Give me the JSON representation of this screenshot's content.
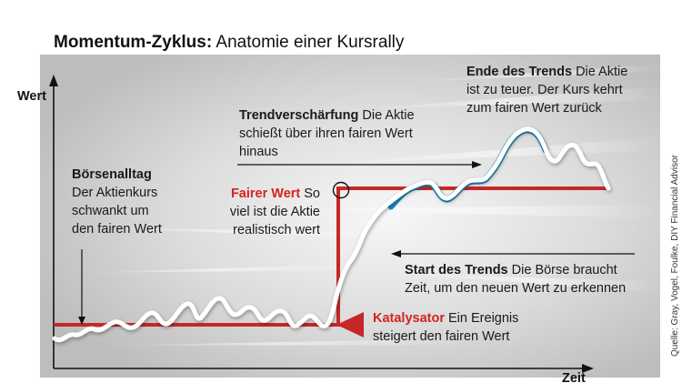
{
  "title": {
    "bold": "Momentum-Zyklus:",
    "regular": " Anatomie einer Kursrally"
  },
  "axes": {
    "y_label": "Wert",
    "x_label": "Zeit"
  },
  "annotations": {
    "boersenalltag": {
      "heading": "Börsenalltag",
      "line1": "Der Aktienkurs",
      "line2": "schwankt um",
      "line3": "den fairen Wert"
    },
    "fairer_wert": {
      "heading": "Fairer Wert",
      "line1_rest": " So",
      "line2": "viel ist die Aktie",
      "line3": "realistisch wert"
    },
    "trendverschaerfung": {
      "heading": "Trendverschärfung",
      "line1_rest": " Die Aktie",
      "line2": "schießt über ihren fairen Wert",
      "line3": "hinaus"
    },
    "ende_des_trends": {
      "heading": "Ende des Trends",
      "line1_rest": " Die Aktie",
      "line2": "ist zu teuer. Der Kurs kehrt",
      "line3": "zum fairen Wert zurück"
    },
    "start_des_trends": {
      "heading": "Start des Trends",
      "line1_rest": " Die Börse braucht",
      "line2": "Zeit, um den neuen Wert zu erkennen"
    },
    "katalysator": {
      "heading": "Katalysator",
      "line1_rest": " Ein Ereignis",
      "line2": "steigert den fairen Wert"
    }
  },
  "source": "Quelle: Gray, Vogel, Foulke, DIY Financial Advisor",
  "colors": {
    "fair_value_line": "#c62828",
    "trend_highlight": "#1e8bc3",
    "price_line": "#ffffff",
    "text": "#1a1a1a",
    "accent_text": "#d42320"
  }
}
